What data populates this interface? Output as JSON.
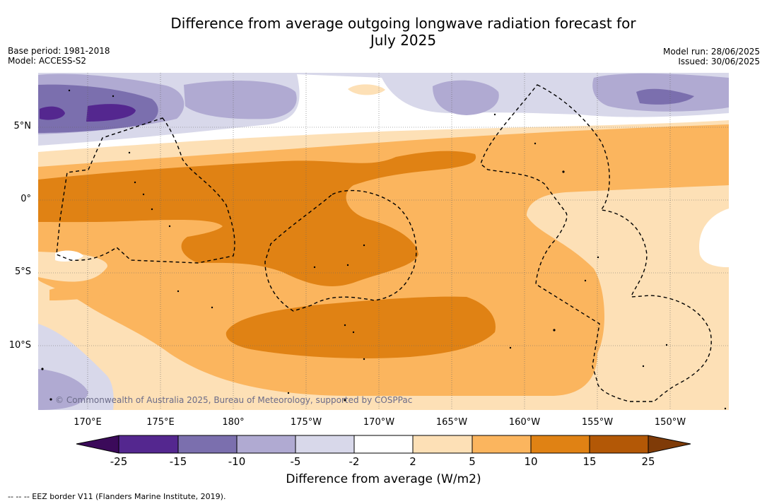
{
  "title_line1": "Difference from average outgoing longwave radiation forecast for",
  "title_line2": "July 2025",
  "meta": {
    "base_period": "Base period: 1981-2018",
    "model": "Model: ACCESS-S2",
    "model_run": "Model run: 28/06/2025",
    "issued": "Issued: 30/06/2025"
  },
  "lat_labels": [
    "5°N",
    "0°",
    "5°S",
    "10°S"
  ],
  "lon_labels": [
    "170°E",
    "175°E",
    "180°",
    "175°W",
    "170°W",
    "165°W",
    "160°W",
    "155°W",
    "150°W"
  ],
  "copyright": "© Commonwealth of Australia 2025, Bureau of Meteorology, supported by COSPPac",
  "colorbar": {
    "ticks": [
      "-25",
      "-15",
      "-10",
      "-5",
      "-2",
      "2",
      "5",
      "10",
      "15",
      "25"
    ],
    "colors": [
      "#3b0a5a",
      "#54278f",
      "#7b6fae",
      "#b0aad2",
      "#d8d8ea",
      "#ffffff",
      "#fde0b6",
      "#fbb55e",
      "#e08214",
      "#b35806",
      "#7f3b08"
    ],
    "title": "Difference from average (W/m2)"
  },
  "legend": "-- -- -- EEZ border V11 (Flanders Marine Institute, 2019)."
}
